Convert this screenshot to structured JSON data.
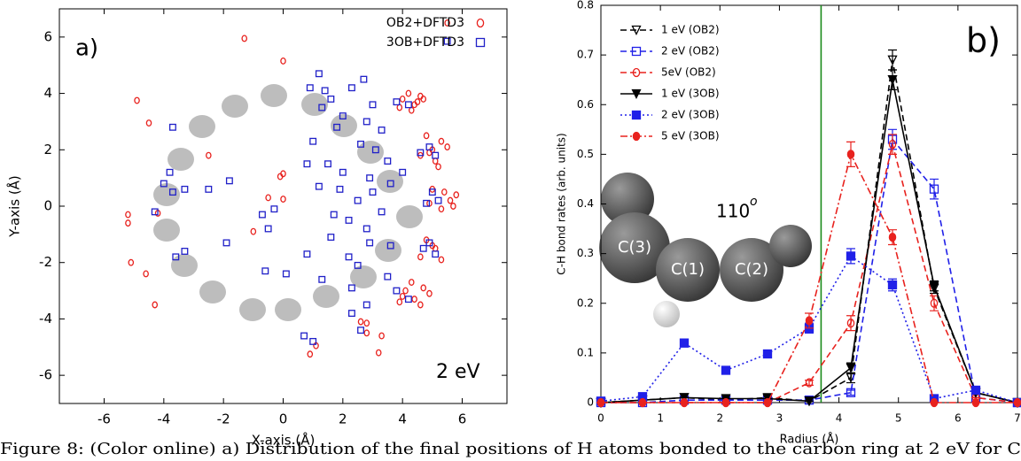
{
  "chart_data": [
    {
      "type": "scatter",
      "x_label": "X-axis (Å)",
      "y_label": "Y-axis (Å)",
      "annotations": [
        "a)",
        "2 eV"
      ],
      "xlim": [
        -7.5,
        7.5
      ],
      "xticks": [
        -6,
        -4,
        -2,
        0,
        2,
        4,
        6
      ],
      "ylim": [
        -7,
        7
      ],
      "yticks": [
        -6,
        -4,
        -2,
        0,
        2,
        4,
        6
      ],
      "legend": "upper right",
      "series": [
        {
          "name": "OB2+DFTD3",
          "color": "#e8221e",
          "marker": "circle-open",
          "x": [
            5.5,
            -1.3,
            0,
            -4.9,
            -4.5,
            -2.5,
            0,
            -0.1,
            -5.2,
            -5.2,
            -4.2,
            -1,
            -0.5,
            0,
            -5.1,
            -4.6,
            -4.3,
            2.6,
            2.8,
            0.9,
            1.1,
            3.2,
            2.8,
            3.3,
            4,
            4.2,
            4.4,
            4.6,
            4.3,
            4.5,
            3.9,
            4.7,
            5,
            5.3,
            4.6,
            5.1,
            4.8,
            5.5,
            5.2,
            4.9,
            5.4,
            5.6,
            5.8,
            4.9,
            5.3,
            5.0,
            5.7,
            4.8,
            5.1,
            4.6,
            5.3,
            5.0,
            4.1,
            4.4,
            4.7,
            4.0,
            4.3,
            4.6,
            4.9,
            3.9
          ],
          "y": [
            6.5,
            5.95,
            5.15,
            3.75,
            2.95,
            1.8,
            1.15,
            1.05,
            -0.3,
            -0.6,
            -0.25,
            -0.9,
            0.3,
            0.25,
            -2,
            -2.4,
            -3.5,
            -4.1,
            -4.5,
            -5.25,
            -4.95,
            -5.2,
            -4.15,
            -4.6,
            3.8,
            4.0,
            3.6,
            3.9,
            3.4,
            3.7,
            3.5,
            3.8,
            2.0,
            2.3,
            1.8,
            1.6,
            2.5,
            2.1,
            1.4,
            1.9,
            0.5,
            0.2,
            0.4,
            0.1,
            -0.1,
            0.6,
            0.0,
            -1.2,
            -1.5,
            -1.8,
            -1.9,
            -1.4,
            -3.0,
            -3.3,
            -2.9,
            -3.2,
            -2.7,
            -3.5,
            -3.1,
            -3.4
          ]
        },
        {
          "name": "3OB+DFTD3",
          "color": "#2020c8",
          "marker": "square-open",
          "x": [
            5.5,
            -4.3,
            -3.8,
            -3.7,
            -3.6,
            -3.3,
            -3.7,
            -4,
            -3.3,
            -2.5,
            -1.8,
            -1.9,
            -0.7,
            -0.5,
            -0.3,
            -0.6,
            0.1,
            0.8,
            0.7,
            1,
            1.3,
            0.9,
            1.2,
            1.4,
            1.6,
            1.3,
            1.8,
            2,
            1,
            0.8,
            1.5,
            2,
            1.9,
            1.2,
            1.7,
            2.2,
            2.5,
            3,
            2.8,
            3.3,
            3.6,
            4,
            3.5,
            2.6,
            3.1,
            3.3,
            2.8,
            3,
            3.8,
            4.2,
            2.3,
            2.7,
            2.2,
            2.5,
            2.3,
            2.8,
            3.5,
            3.8,
            4.2,
            4.7,
            4.9,
            5.1,
            4.8,
            5,
            5.2,
            4.6,
            4.9,
            5.1,
            2.3,
            2.6,
            1.6,
            2.9,
            3.6,
            2.9
          ],
          "y": [
            5.85,
            -0.2,
            1.2,
            2.8,
            -1.8,
            -1.6,
            0.5,
            0.8,
            0.6,
            0.6,
            0.9,
            -1.3,
            -0.3,
            -0.8,
            -0.1,
            -2.3,
            -2.4,
            -1.7,
            -4.6,
            -4.8,
            -2.6,
            4.2,
            4.7,
            4.1,
            3.8,
            3.5,
            2.8,
            3.2,
            2.3,
            1.5,
            1.5,
            1.2,
            0.6,
            0.7,
            -0.3,
            -0.5,
            0.2,
            0.5,
            -0.8,
            -0.2,
            0.8,
            1.2,
            1.6,
            2.2,
            2,
            2.7,
            3,
            3.6,
            3.7,
            3.6,
            4.2,
            4.5,
            -1.8,
            -2.1,
            -2.9,
            -3.5,
            -2.5,
            -3,
            -3.3,
            -1.5,
            -1.3,
            -1.7,
            0.1,
            0.5,
            0.2,
            1.9,
            2.1,
            1.8,
            -3.8,
            -4.4,
            -1.1,
            -1.3,
            -1.4,
            1
          ]
        }
      ]
    },
    {
      "type": "line",
      "x_label": "Radius (Å)",
      "y_label": "C-H bond rates (arb. units)",
      "annotations": [
        "b)",
        "C(3)",
        "C(1)",
        "C(2)"
      ],
      "angle_label": "110",
      "angle_superscript": "o",
      "xlim": [
        0,
        7
      ],
      "xticks": [
        0,
        1,
        2,
        3,
        4,
        5,
        6,
        7
      ],
      "ylim": [
        0,
        0.8
      ],
      "yticks": [
        0,
        0.1,
        0.2,
        0.3,
        0.4,
        0.5,
        0.6,
        0.7,
        0.8
      ],
      "vline": 3.7,
      "vline_color": "#1a8a1a",
      "legend": "upper left",
      "x": [
        0,
        0.7,
        1.4,
        2.1,
        2.8,
        3.5,
        4.2,
        4.9,
        5.6,
        6.3,
        7.0
      ],
      "series": [
        {
          "name": "1 eV (OB2)",
          "color": "#000000",
          "line": "dashed",
          "marker": "tri-open",
          "values": [
            0,
            0.005,
            0.01,
            0.005,
            0.01,
            0.003,
            0.05,
            0.69,
            0.23,
            0.02,
            0
          ],
          "errors": [
            0,
            0,
            0,
            0,
            0.005,
            0,
            0.01,
            0.02,
            0.01,
            0,
            0
          ]
        },
        {
          "name": "2 eV (OB2)",
          "color": "#2020e8",
          "line": "dashed",
          "marker": "square-open",
          "values": [
            0,
            0,
            0.005,
            0.005,
            0.005,
            0.005,
            0.02,
            0.53,
            0.43,
            0.01,
            0
          ],
          "errors": [
            0,
            0,
            0,
            0,
            0,
            0,
            0.005,
            0.02,
            0.02,
            0,
            0
          ]
        },
        {
          "name": "5eV (OB2)",
          "color": "#e8221e",
          "line": "dashed",
          "marker": "circle-open",
          "values": [
            0,
            0,
            0,
            0,
            0,
            0.04,
            0.16,
            0.52,
            0.2,
            0.01,
            0
          ],
          "errors": [
            0,
            0,
            0,
            0,
            0,
            0.005,
            0.015,
            0.02,
            0.015,
            0,
            0
          ]
        },
        {
          "name": "1 eV (3OB)",
          "color": "#000000",
          "line": "solid",
          "marker": "tri-filled",
          "values": [
            0,
            0.005,
            0.01,
            0.008,
            0.008,
            0.003,
            0.07,
            0.65,
            0.235,
            0.02,
            0
          ],
          "errors": [
            0,
            0,
            0,
            0,
            0,
            0,
            0.01,
            0.02,
            0.01,
            0,
            0
          ]
        },
        {
          "name": "2 eV (3OB)",
          "color": "#2020e8",
          "line": "dotted",
          "marker": "square-filled",
          "values": [
            0.003,
            0.012,
            0.12,
            0.065,
            0.098,
            0.15,
            0.295,
            0.237,
            0.008,
            0.025,
            0
          ],
          "errors": [
            0,
            0.005,
            0.008,
            0.006,
            0.006,
            0.01,
            0.015,
            0.012,
            0.005,
            0.005,
            0
          ]
        },
        {
          "name": "5 eV (3OB)",
          "color": "#e8221e",
          "line": "dashdot",
          "marker": "circle-filled",
          "values": [
            0,
            0,
            0,
            0,
            0,
            0.165,
            0.5,
            0.333,
            0,
            0,
            0
          ],
          "errors": [
            0,
            0,
            0,
            0,
            0,
            0.015,
            0.025,
            0.015,
            0,
            0,
            0
          ]
        }
      ]
    }
  ],
  "caption": "Figure 8: (Color online) a) Distribution of the final positions of H atoms bonded to the carbon ring at 2 eV for C"
}
